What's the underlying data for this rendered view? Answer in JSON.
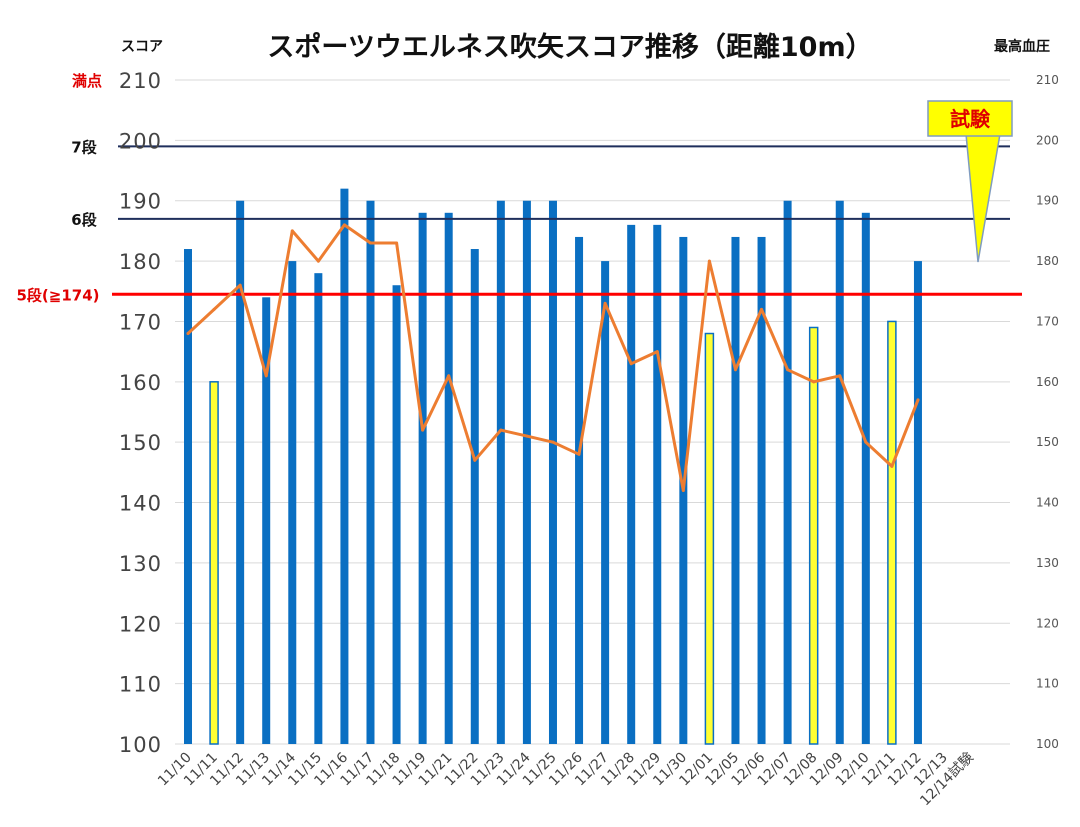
{
  "chart_data": {
    "type": "bar",
    "title": "スポーツウエルネス吹矢スコア推移（距離10m）",
    "ylabel": "スコア",
    "y2label": "最高血圧",
    "ylim": [
      100,
      210
    ],
    "y2lim": [
      100,
      210
    ],
    "yticks": [
      "100",
      "110",
      "120",
      "130",
      "140",
      "150",
      "160",
      "170",
      "180",
      "190",
      "200",
      "210"
    ],
    "y2ticks": [
      "100",
      "110",
      "120",
      "130",
      "140",
      "150",
      "160",
      "170",
      "180",
      "190",
      "200",
      "210"
    ],
    "grid": true,
    "categories": [
      "11/10",
      "11/11",
      "11/12",
      "11/13",
      "11/14",
      "11/15",
      "11/16",
      "11/17",
      "11/18",
      "11/19",
      "11/21",
      "11/22",
      "11/23",
      "11/24",
      "11/25",
      "11/26",
      "11/27",
      "11/28",
      "11/29",
      "11/30",
      "12/01",
      "12/05",
      "12/06",
      "12/07",
      "12/08",
      "12/09",
      "12/10",
      "12/11",
      "12/12",
      "12/13",
      "12/14試験"
    ],
    "series": [
      {
        "type": "bar",
        "axis": "left",
        "values": [
          182,
          160,
          190,
          174,
          180,
          178,
          192,
          190,
          176,
          188,
          188,
          182,
          190,
          190,
          190,
          184,
          180,
          186,
          186,
          184,
          168,
          184,
          184,
          190,
          169,
          190,
          188,
          170,
          180,
          null,
          null
        ],
        "highlight": [
          false,
          true,
          false,
          false,
          false,
          false,
          false,
          false,
          false,
          false,
          false,
          false,
          false,
          false,
          false,
          false,
          false,
          false,
          false,
          false,
          true,
          false,
          false,
          false,
          true,
          false,
          false,
          true,
          false,
          false,
          false
        ]
      },
      {
        "type": "line",
        "axis": "right",
        "values": [
          168,
          172,
          176,
          161,
          185,
          180,
          186,
          183,
          183,
          152,
          161,
          147,
          152,
          151,
          150,
          148,
          173,
          163,
          165,
          142,
          180,
          162,
          172,
          162,
          160,
          161,
          150,
          146,
          157,
          null,
          null
        ]
      }
    ],
    "reference_lines": [
      {
        "label": "満点",
        "value": 210
      },
      {
        "label": "7段",
        "value": 199
      },
      {
        "label": "6段",
        "value": 187
      },
      {
        "label": "5段(≧174)",
        "value": 174.5
      }
    ],
    "annotations": [
      {
        "text": "試験"
      }
    ]
  },
  "colors": {
    "bar": "#0a6fc2",
    "bar_highlight": "#ffff33",
    "line": "#ed7d31",
    "grid": "#d9d9d9",
    "ref_dark": "#1f2f5c",
    "ref_red": "#ff0000",
    "label_red": "#e00000",
    "callout_fill": "#ffff00",
    "callout_stroke": "#7f9cc0"
  }
}
